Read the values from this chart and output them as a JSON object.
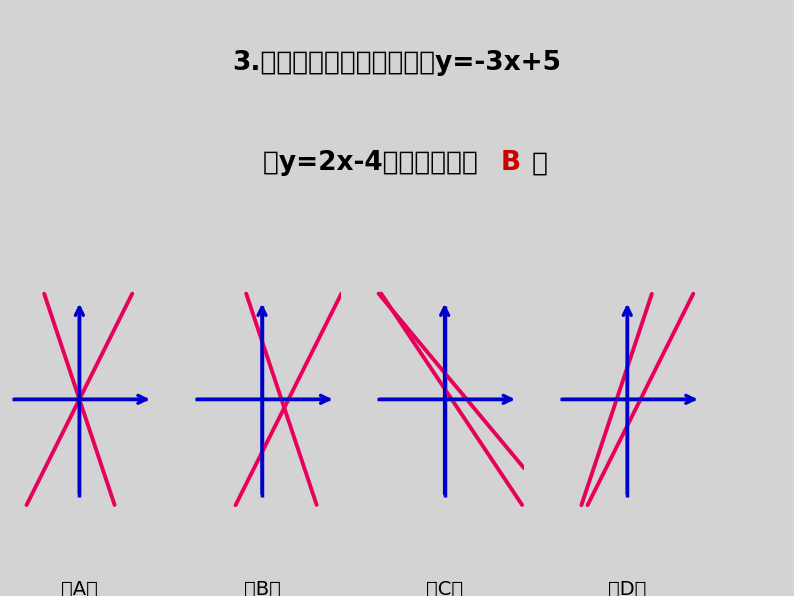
{
  "background_color": "#d3d3d3",
  "axis_color": "#0000cc",
  "func_color": "#e8005a",
  "answer_color": "#cc0000",
  "title_fontsize": 19,
  "label_fontsize": 14,
  "panels": [
    {
      "label": "A",
      "lines": [
        {
          "slope": -3.0,
          "intercept": 0.0
        },
        {
          "slope": 2.0,
          "intercept": 0.0
        }
      ]
    },
    {
      "label": "B",
      "lines": [
        {
          "slope": -3.0,
          "intercept": 1.1
        },
        {
          "slope": 2.0,
          "intercept": -1.0
        }
      ]
    },
    {
      "label": "C",
      "lines": [
        {
          "slope": -1.2,
          "intercept": 0.5
        },
        {
          "slope": -1.5,
          "intercept": 0.2
        }
      ]
    },
    {
      "label": "D",
      "lines": [
        {
          "slope": 3.0,
          "intercept": 0.6
        },
        {
          "slope": 2.0,
          "intercept": -0.5
        }
      ]
    }
  ],
  "xlim": [
    -1.5,
    1.5
  ],
  "ylim": [
    -2.0,
    2.0
  ]
}
